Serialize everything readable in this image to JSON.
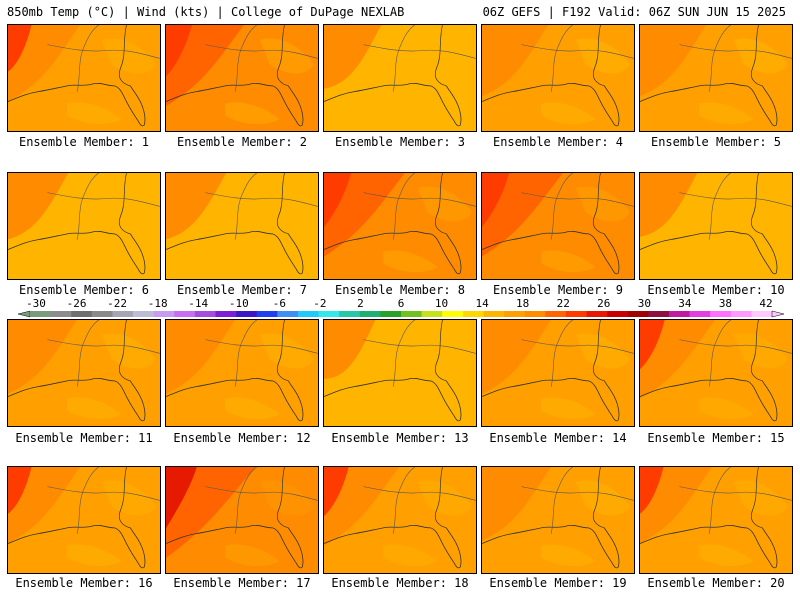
{
  "header": {
    "left": "850mb Temp (°C) | Wind (kts) | College of DuPage NEXLAB",
    "right": "06Z GEFS | F192 Valid: 06Z SUN JUN 15 2025"
  },
  "member_prefix": "Ensemble Member:",
  "members": [
    {
      "id": "1",
      "warmth": 0.55
    },
    {
      "id": "2",
      "warmth": 0.65
    },
    {
      "id": "3",
      "warmth": 0.3
    },
    {
      "id": "4",
      "warmth": 0.45
    },
    {
      "id": "5",
      "warmth": 0.45
    },
    {
      "id": "6",
      "warmth": 0.35
    },
    {
      "id": "7",
      "warmth": 0.35
    },
    {
      "id": "8",
      "warmth": 0.7
    },
    {
      "id": "9",
      "warmth": 0.7
    },
    {
      "id": "10",
      "warmth": 0.3
    },
    {
      "id": "11",
      "warmth": 0.5
    },
    {
      "id": "12",
      "warmth": 0.5
    },
    {
      "id": "13",
      "warmth": 0.2
    },
    {
      "id": "14",
      "warmth": 0.5
    },
    {
      "id": "15",
      "warmth": 0.6
    },
    {
      "id": "16",
      "warmth": 0.55
    },
    {
      "id": "17",
      "warmth": 0.85
    },
    {
      "id": "18",
      "warmth": 0.6
    },
    {
      "id": "19",
      "warmth": 0.5
    },
    {
      "id": "20",
      "warmth": 0.55
    }
  ],
  "colorbar": {
    "labels": [
      "-30",
      "-26",
      "-22",
      "-18",
      "-14",
      "-10",
      "-6",
      "-2",
      "2",
      "6",
      "10",
      "14",
      "18",
      "22",
      "26",
      "30",
      "34",
      "38",
      "42"
    ],
    "colors": [
      "#7c9a7c",
      "#8c8c8c",
      "#6f6f6f",
      "#8a8a8a",
      "#a6a6b2",
      "#bcbcd6",
      "#c79bf0",
      "#c86ef0",
      "#a24de0",
      "#7c1fd2",
      "#3d17c4",
      "#2040f0",
      "#3f8ef0",
      "#22c8f8",
      "#33e8e8",
      "#26c8a8",
      "#1eb070",
      "#2aa02a",
      "#70c020",
      "#c6e01c",
      "#ffff00",
      "#ffd800",
      "#ffb400",
      "#ffa000",
      "#ff8c00",
      "#ff6400",
      "#ff3c00",
      "#e61a00",
      "#c80000",
      "#a00000",
      "#8c1040",
      "#c01aa0",
      "#e040e0",
      "#ff70ff",
      "#ff99ff",
      "#ffc8ff"
    ]
  }
}
